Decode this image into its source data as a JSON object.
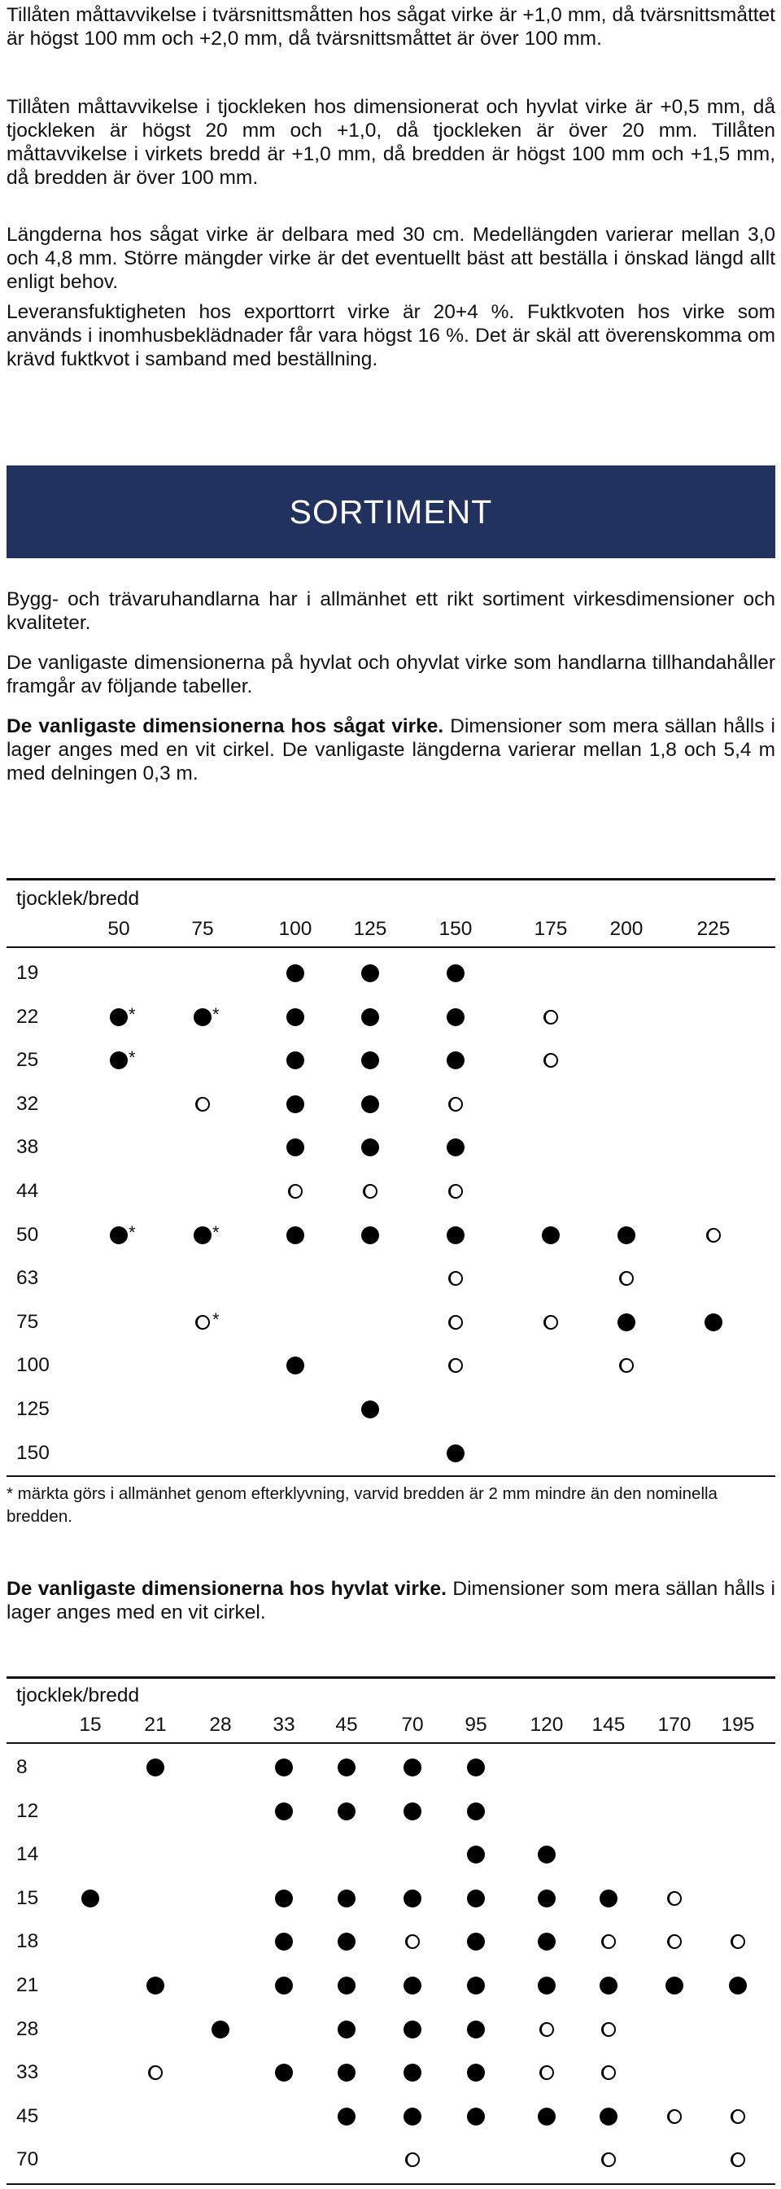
{
  "paragraphs": {
    "p1": "Tillåten måttavvikelse i tvärsnittsmåtten hos sågat virke är +1,0 mm, då tvärsnittsmåttet är högst 100 mm och +2,0 mm, då tvärsnittsmåttet är över 100 mm.",
    "p2": "Tillåten måttavvikelse i tjockleken hos dimensionerat och hyvlat virke är +0,5 mm, då tjockleken är högst 20 mm och +1,0, då tjockleken är över 20 mm. Tillåten måttavvikelse i virkets bredd är +1,0 mm, då bredden är högst 100 mm och +1,5 mm, då bredden är över 100 mm.",
    "p3": "Längderna hos sågat virke är delbara med 30 cm. Medellängden varierar mellan 3,0 och 4,8 mm. Större mängder virke är det eventuellt bäst att beställa i önskad längd allt enligt behov.",
    "p4": "Leveransfuktigheten hos exporttorrt virke är 20+4 %. Fuktkvoten hos virke som används i inomhusbeklädnader får vara högst 16 %. Det är skäl att överenskomma om krävd fuktkvot i samband med beställning."
  },
  "banner": {
    "title": "SORTIMENT"
  },
  "sortiment": {
    "p1": "Bygg- och trävaruhandlarna har i allmänhet ett rikt sortiment virkesdimensioner och kvaliteter.",
    "p2": "De vanligaste dimensionerna på hyvlat och ohyvlat virke som handlarna tillhandahåller framgår av följande tabeller.",
    "p3_bold": "De vanligaste dimensionerna hos sågat virke.",
    "p3_rest": " Dimensioner som mera sällan hålls i lager anges med en vit cirkel. De vanligaste längderna varierar mellan 1,8 och 5,4 m med delningen 0,3 m."
  },
  "table1": {
    "title": "tjocklek/bredd",
    "columns": [
      "50",
      "75",
      "100",
      "125",
      "150",
      "175",
      "200",
      "225"
    ],
    "rows": [
      {
        "label": "19",
        "cells": [
          "",
          "",
          "d",
          "d",
          "d",
          "",
          "",
          ""
        ]
      },
      {
        "label": "22",
        "cells": [
          "d*",
          "d*",
          "d",
          "d",
          "d",
          "r",
          "",
          ""
        ]
      },
      {
        "label": "25",
        "cells": [
          "d*",
          "",
          "d",
          "d",
          "d",
          "r",
          "",
          ""
        ]
      },
      {
        "label": "32",
        "cells": [
          "",
          "r",
          "d",
          "d",
          "r",
          "",
          "",
          ""
        ]
      },
      {
        "label": "38",
        "cells": [
          "",
          "",
          "d",
          "d",
          "d",
          "",
          "",
          ""
        ]
      },
      {
        "label": "44",
        "cells": [
          "",
          "",
          "r",
          "r",
          "r",
          "",
          "",
          ""
        ]
      },
      {
        "label": "50",
        "cells": [
          "d*",
          "d*",
          "d",
          "d",
          "d",
          "d",
          "d",
          "r"
        ]
      },
      {
        "label": "63",
        "cells": [
          "",
          "",
          "",
          "",
          "r",
          "",
          "r",
          ""
        ]
      },
      {
        "label": "75",
        "cells": [
          "",
          "r*",
          "",
          "",
          "r",
          "r",
          "d",
          "d"
        ]
      },
      {
        "label": "100",
        "cells": [
          "",
          "",
          "d",
          "",
          "r",
          "",
          "r",
          ""
        ]
      },
      {
        "label": "125",
        "cells": [
          "",
          "",
          "",
          "d",
          "",
          "",
          "",
          ""
        ]
      },
      {
        "label": "150",
        "cells": [
          "",
          "",
          "",
          "",
          "d",
          "",
          "",
          ""
        ]
      }
    ],
    "footnote": "* märkta görs i allmänhet genom efterklyvning, varvid bredden är 2 mm mindre än den nominella bredden."
  },
  "hyvlat": {
    "bold": "De vanligaste dimensionerna hos hyvlat virke.",
    "rest": " Dimensioner som mera sällan hålls i lager anges med en vit cirkel."
  },
  "table2": {
    "title": "tjocklek/bredd",
    "columns": [
      "15",
      "21",
      "28",
      "33",
      "45",
      "70",
      "95",
      "120",
      "145",
      "170",
      "195"
    ],
    "rows": [
      {
        "label": "8",
        "cells": [
          "",
          "d",
          "",
          "d",
          "d",
          "d",
          "d",
          "",
          "",
          "",
          ""
        ]
      },
      {
        "label": "12",
        "cells": [
          "",
          "",
          "",
          "d",
          "d",
          "d",
          "d",
          "",
          "",
          "",
          ""
        ]
      },
      {
        "label": "14",
        "cells": [
          "",
          "",
          "",
          "",
          "",
          "",
          "d",
          "d",
          "",
          "",
          ""
        ]
      },
      {
        "label": "15",
        "cells": [
          "d",
          "",
          "",
          "d",
          "d",
          "d",
          "d",
          "d",
          "d",
          "r",
          ""
        ]
      },
      {
        "label": "18",
        "cells": [
          "",
          "",
          "",
          "d",
          "d",
          "r",
          "d",
          "d",
          "r",
          "r",
          "r"
        ]
      },
      {
        "label": "21",
        "cells": [
          "",
          "d",
          "",
          "d",
          "d",
          "d",
          "d",
          "d",
          "d",
          "d",
          "d"
        ]
      },
      {
        "label": "28",
        "cells": [
          "",
          "",
          "d",
          "",
          "d",
          "d",
          "d",
          "r",
          "r",
          "",
          ""
        ]
      },
      {
        "label": "33",
        "cells": [
          "",
          "r",
          "",
          "d",
          "d",
          "d",
          "d",
          "r",
          "r",
          "",
          ""
        ]
      },
      {
        "label": "45",
        "cells": [
          "",
          "",
          "",
          "",
          "d",
          "d",
          "d",
          "d",
          "d",
          "r",
          "r"
        ]
      },
      {
        "label": "70",
        "cells": [
          "",
          "",
          "",
          "",
          "",
          "r",
          "",
          "",
          "r",
          "",
          "r"
        ]
      }
    ]
  },
  "legend_icons": {
    "filled": "filled-circle-icon",
    "open": "open-circle-icon"
  }
}
